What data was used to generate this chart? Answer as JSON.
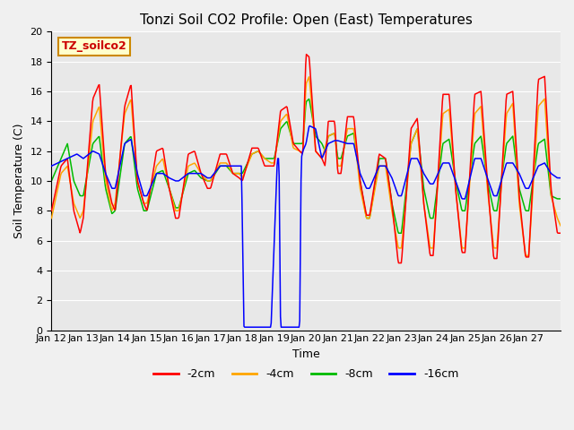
{
  "title": "Tonzi Soil CO2 Profile: Open (East) Temperatures",
  "xlabel": "Time",
  "ylabel": "Soil Temperature (C)",
  "ylim": [
    0,
    20
  ],
  "background_color": "#e8e8e8",
  "legend_label": "TZ_soilco2",
  "series_colors": [
    "#ff0000",
    "#ffa500",
    "#00bb00",
    "#0000ff"
  ],
  "series_labels": [
    "-2cm",
    "-4cm",
    "-8cm",
    "-16cm"
  ],
  "xtick_labels": [
    "Jan 12",
    "Jan 13",
    "Jan 14",
    "Jan 15",
    "Jan 16",
    "Jan 17",
    "Jan 18",
    "Jan 19",
    "Jan 20",
    "Jan 21",
    "Jan 22",
    "Jan 23",
    "Jan 24",
    "Jan 25",
    "Jan 26",
    "Jan 27"
  ],
  "grid_color": "#ffffff",
  "title_fontsize": 11,
  "axis_fontsize": 9,
  "tick_fontsize": 8
}
